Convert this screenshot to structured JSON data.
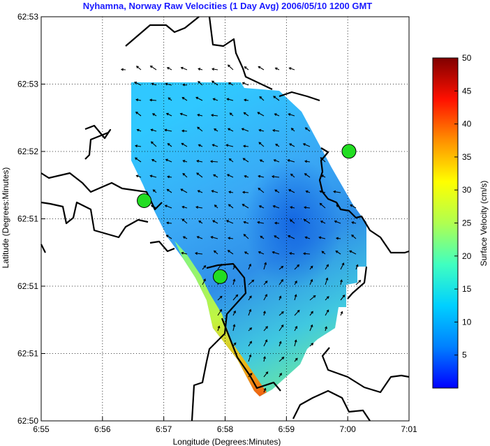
{
  "chart_data": {
    "type": "heatmap",
    "title": "Nyhamna, Norway Raw Velocities (1 Day Avg) 2006/05/10 1200 GMT",
    "xlabel": "Longitude (Degrees:Minutes)",
    "ylabel": "Latitude (Degrees:Minutes)",
    "x_tick_labels": [
      "6:55",
      "6:56",
      "6:57",
      "6:58",
      "6:59",
      "7:00",
      "7:01"
    ],
    "y_tick_labels": [
      "62:50",
      "62:51",
      "62:51",
      "62:51",
      "62:52",
      "62:53",
      "62:53"
    ],
    "xlim": [
      "6:55",
      "7:01"
    ],
    "ylim": [
      "62:50",
      "62:53"
    ],
    "grid": true,
    "colorbar": {
      "label": "Surface Velocity (cm/s)",
      "range": [
        0,
        50
      ],
      "tick_labels": [
        "5",
        "10",
        "15",
        "20",
        "25",
        "30",
        "35",
        "40",
        "45",
        "50"
      ],
      "colormap": "jet"
    },
    "stations": [
      {
        "lon_min": 56.68,
        "lat_frac": 0.545,
        "color": "#22dd22"
      },
      {
        "lon_min": 57.92,
        "lat_frac": 0.357,
        "color": "#22dd22"
      },
      {
        "lon_min": 60.02,
        "lat_frac": 0.667,
        "color": "#22dd22"
      }
    ]
  },
  "colors": {
    "title": "#1a1aff",
    "coastline": "#000000",
    "station": "#22dd22"
  }
}
